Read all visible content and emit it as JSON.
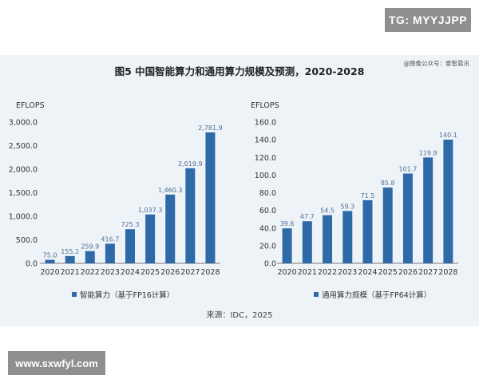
{
  "watermarks": {
    "top_right": "TG: MYYJJPP",
    "bottom_left": "www.sxwfyl.com"
  },
  "figure": {
    "title": "图5 中国智能算力和通用算力规模及预测，2020-2028",
    "credit": "@图像公众号：泰智晨讯",
    "source": "来源：IDC，2025",
    "bar_color": "#2f6aa8"
  },
  "chart_data": [
    {
      "type": "bar",
      "unit_label": "EFLOPS",
      "categories": [
        "2020",
        "2021",
        "2022",
        "2023",
        "2024",
        "2025",
        "2026",
        "2027",
        "2028"
      ],
      "series": [
        {
          "name": "智能算力（基于FP16计算）",
          "values": [
            75.0,
            155.2,
            259.9,
            416.7,
            725.3,
            1037.3,
            1460.3,
            2019.9,
            2781.9
          ]
        }
      ],
      "data_labels": [
        "75.0",
        "155.2",
        "259.9",
        "416.7",
        "725.3",
        "1,037.3",
        "1,460.3",
        "2,019.9",
        "2,781.9"
      ],
      "ylim": [
        0,
        3000
      ],
      "yticks": [
        "0.0",
        "500.0",
        "1,000.0",
        "1,500.0",
        "2,000.0",
        "2,500.0",
        "3,000.0"
      ],
      "legend_position": "bottom",
      "grid": false
    },
    {
      "type": "bar",
      "unit_label": "EFLOPS",
      "categories": [
        "2020",
        "2021",
        "2022",
        "2023",
        "2024",
        "2025",
        "2026",
        "2027",
        "2028"
      ],
      "series": [
        {
          "name": "通用算力规模（基于FP64计算）",
          "values": [
            39.6,
            47.7,
            54.5,
            59.3,
            71.5,
            85.8,
            101.7,
            119.9,
            140.1
          ]
        }
      ],
      "data_labels": [
        "39.6",
        "47.7",
        "54.5",
        "59.3",
        "71.5",
        "85.8",
        "101.7",
        "119.9",
        "140.1"
      ],
      "ylim": [
        0,
        160
      ],
      "yticks": [
        "0.0",
        "20.0",
        "40.0",
        "60.0",
        "80.0",
        "100.0",
        "120.0",
        "140.0",
        "160.0"
      ],
      "legend_position": "bottom",
      "grid": false
    }
  ]
}
